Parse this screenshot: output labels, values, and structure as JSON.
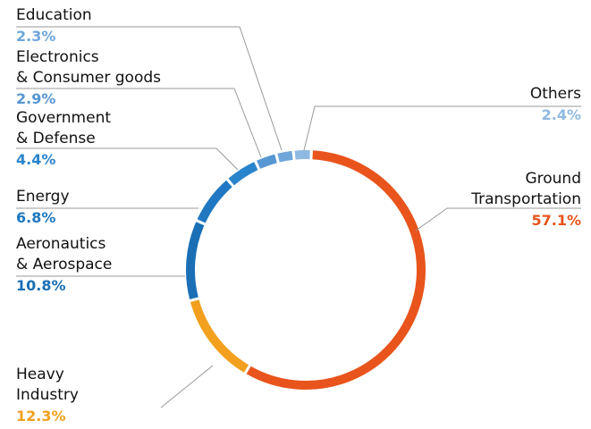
{
  "chart_data": {
    "type": "donut",
    "categories": [
      "Others",
      "Ground\nTransportation",
      "Heavy\nIndustry",
      "Aeronautics\n& Aerospace",
      "Energy",
      "Government\n& Defense",
      "Electronics\n& Consumer goods",
      "Education"
    ],
    "values": [
      2.4,
      57.1,
      12.3,
      10.8,
      6.8,
      4.4,
      2.9,
      2.3
    ],
    "value_labels": [
      "2.4%",
      "57.1%",
      "12.3%",
      "10.8%",
      "6.8%",
      "4.4%",
      "2.9%",
      "2.3%"
    ],
    "colors": [
      "#8fb9e2",
      "#e8541c",
      "#f2a01e",
      "#1a6fb5",
      "#1f78c1",
      "#2a84cc",
      "#5797d3",
      "#6fa6da"
    ]
  }
}
